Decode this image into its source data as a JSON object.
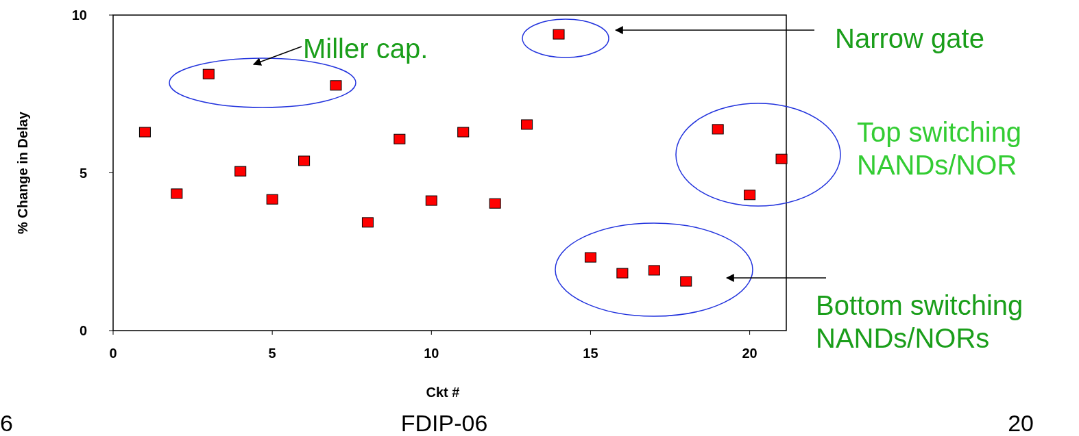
{
  "chart_data": {
    "type": "scatter",
    "xlabel": "Ckt #",
    "ylabel": "% Change in Delay",
    "x": [
      1,
      2,
      3,
      4,
      5,
      6,
      7,
      8,
      9,
      10,
      11,
      12,
      13,
      14,
      15,
      16,
      17,
      18,
      19,
      20,
      21
    ],
    "series": [
      {
        "color": "#ff0000",
        "values": [
          6.29,
          4.34,
          8.13,
          5.05,
          4.16,
          5.38,
          7.77,
          3.43,
          6.07,
          4.12,
          6.29,
          4.03,
          6.53,
          9.39,
          2.32,
          1.82,
          1.91,
          1.56,
          6.38,
          4.3,
          5.44
        ]
      }
    ],
    "xlim": [
      0,
      21.15
    ],
    "ylim": [
      0,
      10
    ],
    "xticks": [
      0,
      5,
      10,
      15,
      20
    ],
    "yticks": [
      0,
      5,
      10
    ],
    "marker": "square",
    "annotations": [
      "Miller cap.",
      "Narrow gate",
      "Top switching\nNANDs/NOR",
      "Bottom switching\nNANDs/NORs",
      "6",
      "FDIP-06",
      "20"
    ]
  }
}
